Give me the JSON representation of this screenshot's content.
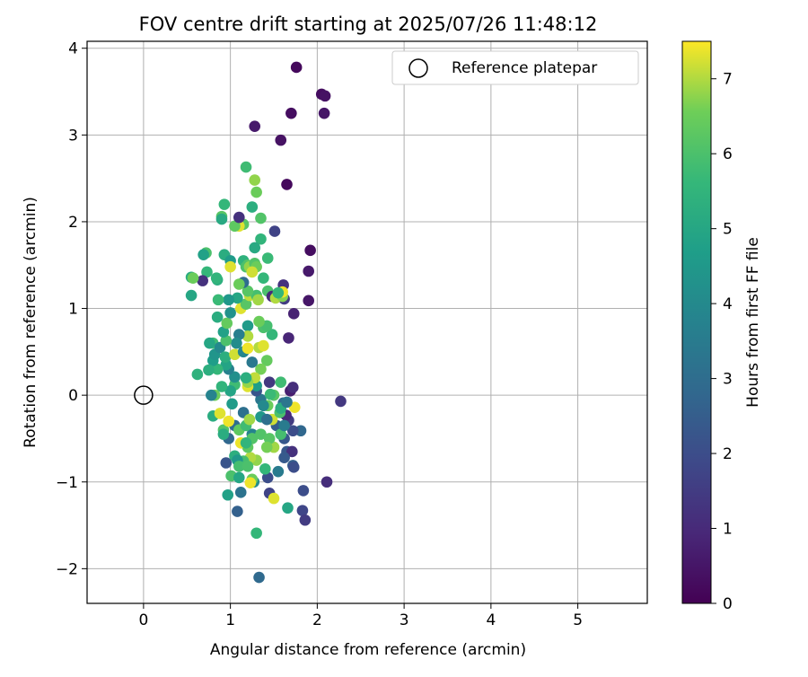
{
  "chart_data": {
    "type": "scatter",
    "title": "FOV centre drift starting at 2025/07/26 11:48:12",
    "xlabel": "Angular distance from reference (arcmin)",
    "ylabel": "Rotation from reference (arcmin)",
    "xlim": [
      -0.65,
      5.8
    ],
    "ylim": [
      -2.4,
      4.08
    ],
    "xticks": [
      0,
      1,
      2,
      3,
      4,
      5
    ],
    "yticks": [
      -2,
      -1,
      0,
      1,
      2,
      3,
      4
    ],
    "grid": true,
    "legend_position": "upper-right",
    "legend": {
      "label": "Reference platepar"
    },
    "colormap": "viridis",
    "colorbar": {
      "label": "Hours from first FF file",
      "min": 0,
      "max": 7.5,
      "ticks": [
        0,
        1,
        2,
        3,
        4,
        5,
        6,
        7
      ]
    },
    "reference_point": {
      "x": 0,
      "y": 0
    },
    "points": [
      [
        1.76,
        3.78,
        0.2
      ],
      [
        2.05,
        3.47,
        0.3
      ],
      [
        2.09,
        3.45,
        0.4
      ],
      [
        2.08,
        3.25,
        0.5
      ],
      [
        1.7,
        3.25,
        0.3
      ],
      [
        1.28,
        3.1,
        0.6
      ],
      [
        1.58,
        2.94,
        0.4
      ],
      [
        1.65,
        2.43,
        0.2
      ],
      [
        1.92,
        1.67,
        0.3
      ],
      [
        1.9,
        1.43,
        0.6
      ],
      [
        1.9,
        1.09,
        0.5
      ],
      [
        1.73,
        0.94,
        0.8
      ],
      [
        1.61,
        1.27,
        1.2
      ],
      [
        1.51,
        1.89,
        1.7
      ],
      [
        1.62,
        1.11,
        1.5
      ],
      [
        1.67,
        0.66,
        0.9
      ],
      [
        2.27,
        -0.07,
        1.4
      ],
      [
        2.11,
        -1.0,
        1.1
      ],
      [
        1.84,
        -1.1,
        2.0
      ],
      [
        1.83,
        -1.33,
        1.8
      ],
      [
        1.86,
        -1.44,
        1.5
      ],
      [
        1.65,
        -0.65,
        2.3
      ],
      [
        1.71,
        -0.65,
        1.2
      ],
      [
        1.72,
        -0.81,
        2.5
      ],
      [
        1.73,
        -0.83,
        2.0
      ],
      [
        1.81,
        -0.41,
        2.8
      ],
      [
        1.72,
        -0.41,
        2.0
      ],
      [
        1.67,
        -0.29,
        1.5
      ],
      [
        1.64,
        -0.23,
        1.0
      ],
      [
        1.69,
        0.05,
        0.7
      ],
      [
        1.72,
        0.09,
        1.1
      ],
      [
        1.61,
        -0.09,
        3.0
      ],
      [
        1.53,
        -0.35,
        2.5
      ],
      [
        1.43,
        -0.95,
        2.0
      ],
      [
        1.45,
        -1.13,
        1.7
      ],
      [
        1.55,
        -0.88,
        3.5
      ],
      [
        1.35,
        -0.05,
        3.3
      ],
      [
        1.3,
        0.05,
        2.2
      ],
      [
        1.25,
        -0.45,
        3.8
      ],
      [
        1.15,
        -0.2,
        3.1
      ],
      [
        1.05,
        -0.35,
        3.0
      ],
      [
        0.98,
        -0.5,
        2.8
      ],
      [
        0.95,
        -0.78,
        2.2
      ],
      [
        1.12,
        -1.12,
        3.2
      ],
      [
        1.08,
        -1.34,
        2.6
      ],
      [
        1.33,
        -2.1,
        2.9
      ],
      [
        1.27,
        -1.0,
        4.1
      ],
      [
        0.97,
        -1.15,
        4.8
      ],
      [
        1.3,
        -1.59,
        5.6
      ],
      [
        1.66,
        -1.3,
        5.0
      ],
      [
        1.5,
        -1.19,
        7.3
      ],
      [
        1.4,
        -0.85,
        5.6
      ],
      [
        1.3,
        -0.75,
        6.8
      ],
      [
        1.23,
        -0.72,
        7.0
      ],
      [
        1.15,
        -0.76,
        5.9
      ],
      [
        1.25,
        -0.97,
        6.5
      ],
      [
        1.23,
        -1.01,
        7.4
      ],
      [
        1.01,
        -0.93,
        6.0
      ],
      [
        1.05,
        -0.7,
        5.3
      ],
      [
        1.2,
        -0.6,
        6.3
      ],
      [
        1.35,
        -0.45,
        6.1
      ],
      [
        1.5,
        -0.6,
        6.9
      ],
      [
        1.48,
        -0.28,
        7.2
      ],
      [
        1.57,
        -0.2,
        6.0
      ],
      [
        1.58,
        -0.15,
        5.2
      ],
      [
        1.74,
        -0.14,
        7.4
      ],
      [
        1.43,
        -0.12,
        6.5
      ],
      [
        1.5,
        0.0,
        6.2
      ],
      [
        1.46,
        0.01,
        5.7
      ],
      [
        1.3,
        0.11,
        4.7
      ],
      [
        1.2,
        0.1,
        7.3
      ],
      [
        1.05,
        0.12,
        5.8
      ],
      [
        1.0,
        0.05,
        4.9
      ],
      [
        0.9,
        0.1,
        5.5
      ],
      [
        0.82,
        0.0,
        6.5
      ],
      [
        0.78,
        0.0,
        3.8
      ],
      [
        0.8,
        -0.24,
        5.2
      ],
      [
        0.88,
        -0.21,
        7.3
      ],
      [
        0.92,
        -0.4,
        6.1
      ],
      [
        0.92,
        -0.45,
        5.2
      ],
      [
        0.98,
        -0.3,
        7.4
      ],
      [
        1.1,
        -0.4,
        6.3
      ],
      [
        1.18,
        -0.35,
        5.8
      ],
      [
        1.22,
        -0.28,
        6.9
      ],
      [
        1.02,
        -0.1,
        4.6
      ],
      [
        1.05,
        0.21,
        4.2
      ],
      [
        0.98,
        0.3,
        3.7
      ],
      [
        0.95,
        0.35,
        4.9
      ],
      [
        0.85,
        0.3,
        5.6
      ],
      [
        0.8,
        0.4,
        4.7
      ],
      [
        0.8,
        0.6,
        5.8
      ],
      [
        0.82,
        0.47,
        4.4
      ],
      [
        0.88,
        0.55,
        4.0
      ],
      [
        0.94,
        0.44,
        5.3
      ],
      [
        1.05,
        0.47,
        7.2
      ],
      [
        1.15,
        0.5,
        3.9
      ],
      [
        1.2,
        0.54,
        7.4
      ],
      [
        1.33,
        0.55,
        7.0
      ],
      [
        1.38,
        0.57,
        7.3
      ],
      [
        1.42,
        0.4,
        6.4
      ],
      [
        1.35,
        0.3,
        6.6
      ],
      [
        1.25,
        0.38,
        3.4
      ],
      [
        1.28,
        0.2,
        7.1
      ],
      [
        1.2,
        0.15,
        6.8
      ],
      [
        1.18,
        0.2,
        5.3
      ],
      [
        1.48,
        0.7,
        5.6
      ],
      [
        1.38,
        0.78,
        6.0
      ],
      [
        1.42,
        0.8,
        5.9
      ],
      [
        1.33,
        0.85,
        6.5
      ],
      [
        1.2,
        0.8,
        4.6
      ],
      [
        1.2,
        0.68,
        7.0
      ],
      [
        1.1,
        0.7,
        3.6
      ],
      [
        1.07,
        0.6,
        4.1
      ],
      [
        0.95,
        0.63,
        6.0
      ],
      [
        0.92,
        0.73,
        4.8
      ],
      [
        0.96,
        0.83,
        6.4
      ],
      [
        0.85,
        0.9,
        5.2
      ],
      [
        1.0,
        0.95,
        4.3
      ],
      [
        1.12,
        1.0,
        7.3
      ],
      [
        1.18,
        1.05,
        6.2
      ],
      [
        1.22,
        1.15,
        7.1
      ],
      [
        1.3,
        1.15,
        5.9
      ],
      [
        1.32,
        1.1,
        6.9
      ],
      [
        1.2,
        1.2,
        6.2
      ],
      [
        1.15,
        1.3,
        3.0
      ],
      [
        1.1,
        1.28,
        6.5
      ],
      [
        1.08,
        1.12,
        5.0
      ],
      [
        0.98,
        1.1,
        4.5
      ],
      [
        0.86,
        1.1,
        5.7
      ],
      [
        0.85,
        1.33,
        5.3
      ],
      [
        0.84,
        1.35,
        5.5
      ],
      [
        0.73,
        1.42,
        5.6
      ],
      [
        0.68,
        1.32,
        1.2
      ],
      [
        0.55,
        1.36,
        5.2
      ],
      [
        0.57,
        1.35,
        6.5
      ],
      [
        0.55,
        1.15,
        5.0
      ],
      [
        0.72,
        1.64,
        6.0
      ],
      [
        0.69,
        1.62,
        4.8
      ],
      [
        0.93,
        1.62,
        5.2
      ],
      [
        1.0,
        1.55,
        4.6
      ],
      [
        1.15,
        1.55,
        5.4
      ],
      [
        1.2,
        1.5,
        6.2
      ],
      [
        1.18,
        1.48,
        6.0
      ],
      [
        1.0,
        1.48,
        7.3
      ],
      [
        1.22,
        1.48,
        6.8
      ],
      [
        1.28,
        1.52,
        6.1
      ],
      [
        1.3,
        1.48,
        6.5
      ],
      [
        1.25,
        1.42,
        7.2
      ],
      [
        1.38,
        1.35,
        5.6
      ],
      [
        1.43,
        1.2,
        6.0
      ],
      [
        1.48,
        1.14,
        1.0
      ],
      [
        1.52,
        1.12,
        7.0
      ],
      [
        1.6,
        1.14,
        6.7
      ],
      [
        1.6,
        1.19,
        7.4
      ],
      [
        1.55,
        1.18,
        5.6
      ],
      [
        1.43,
        1.58,
        5.7
      ],
      [
        1.35,
        1.8,
        5.5
      ],
      [
        1.28,
        1.7,
        5.1
      ],
      [
        1.3,
        2.34,
        6.5
      ],
      [
        1.28,
        2.48,
        6.8
      ],
      [
        1.18,
        2.63,
        5.8
      ],
      [
        1.25,
        2.17,
        5.3
      ],
      [
        1.35,
        2.04,
        6.1
      ],
      [
        1.15,
        1.97,
        6.2
      ],
      [
        1.1,
        1.95,
        7.3
      ],
      [
        1.05,
        1.95,
        6.3
      ],
      [
        1.1,
        2.05,
        1.2
      ],
      [
        0.93,
        2.2,
        5.6
      ],
      [
        0.9,
        2.06,
        6.2
      ],
      [
        0.9,
        2.03,
        5.1
      ],
      [
        0.62,
        0.24,
        5.4
      ],
      [
        0.75,
        0.29,
        5.3
      ],
      [
        0.76,
        0.6,
        5.0
      ],
      [
        1.62,
        -0.5,
        2.3
      ],
      [
        1.62,
        -0.72,
        2.4
      ],
      [
        1.58,
        -0.45,
        5.9
      ],
      [
        1.45,
        -0.5,
        6.2
      ],
      [
        1.42,
        -0.6,
        6.6
      ],
      [
        1.25,
        -0.5,
        6.1
      ],
      [
        1.35,
        -0.25,
        4.5
      ],
      [
        1.38,
        -0.12,
        4.0
      ],
      [
        1.42,
        -0.28,
        3.1
      ],
      [
        1.45,
        0.15,
        1.4
      ],
      [
        1.62,
        -0.35,
        3.5
      ],
      [
        1.58,
        0.15,
        5.8
      ],
      [
        1.65,
        -0.08,
        3.3
      ],
      [
        1.12,
        -0.55,
        7.4
      ],
      [
        1.18,
        -0.55,
        5.5
      ],
      [
        1.08,
        -0.75,
        4.5
      ],
      [
        1.1,
        -0.82,
        5.9
      ],
      [
        1.2,
        -0.82,
        6.0
      ],
      [
        1.1,
        -0.95,
        5.0
      ]
    ]
  }
}
